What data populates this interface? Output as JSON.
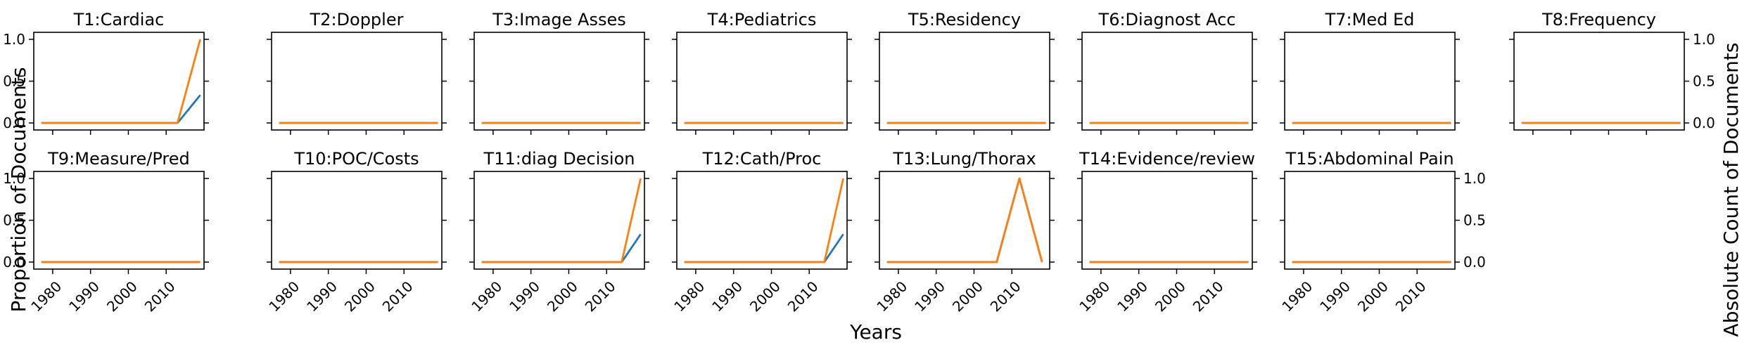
{
  "figure": {
    "xlabel": "Years",
    "ylabel_left": "Proportion of Documents",
    "ylabel_right": "Absolute Count of Documents"
  },
  "colors": {
    "proportion": "#1f77b4",
    "count": "#ff7f0e"
  },
  "chart_data": [
    {
      "type": "line",
      "title": "T1:Cardiac",
      "xlim": [
        1975,
        2020
      ],
      "ylim": [
        0,
        1
      ],
      "yticks": [
        "0.0",
        "0.5",
        "1.0"
      ],
      "series": [
        {
          "x": [
            1977,
            2013,
            2019
          ],
          "values": [
            0,
            0,
            0.333
          ]
        },
        {
          "x": [
            1977,
            2013,
            2019
          ],
          "values": [
            0,
            0,
            1
          ]
        }
      ]
    },
    {
      "type": "line",
      "title": "T2:Doppler",
      "xlim": [
        1975,
        2020
      ],
      "ylim": [
        0,
        1
      ],
      "series": [
        {
          "x": [
            1977,
            2019
          ],
          "values": [
            0,
            0
          ]
        },
        {
          "x": [
            1977,
            2019
          ],
          "values": [
            0,
            0
          ]
        }
      ]
    },
    {
      "type": "line",
      "title": "T3:Image Asses",
      "xlim": [
        1975,
        2020
      ],
      "ylim": [
        0,
        1
      ],
      "series": [
        {
          "x": [
            1977,
            2019
          ],
          "values": [
            0,
            0
          ]
        },
        {
          "x": [
            1977,
            2019
          ],
          "values": [
            0,
            0
          ]
        }
      ]
    },
    {
      "type": "line",
      "title": "T4:Pediatrics",
      "xlim": [
        1975,
        2020
      ],
      "ylim": [
        0,
        1
      ],
      "series": [
        {
          "x": [
            1977,
            2019
          ],
          "values": [
            0,
            0
          ]
        },
        {
          "x": [
            1977,
            2019
          ],
          "values": [
            0,
            0
          ]
        }
      ]
    },
    {
      "type": "line",
      "title": "T5:Residency",
      "xlim": [
        1975,
        2020
      ],
      "ylim": [
        0,
        1
      ],
      "series": [
        {
          "x": [
            1977,
            2019
          ],
          "values": [
            0,
            0
          ]
        },
        {
          "x": [
            1977,
            2019
          ],
          "values": [
            0,
            0
          ]
        }
      ]
    },
    {
      "type": "line",
      "title": "T6:Diagnost Acc",
      "xlim": [
        1975,
        2020
      ],
      "ylim": [
        0,
        1
      ],
      "series": [
        {
          "x": [
            1977,
            2019
          ],
          "values": [
            0,
            0
          ]
        },
        {
          "x": [
            1977,
            2019
          ],
          "values": [
            0,
            0
          ]
        }
      ]
    },
    {
      "type": "line",
      "title": "T7:Med Ed",
      "xlim": [
        1975,
        2020
      ],
      "ylim": [
        0,
        1
      ],
      "series": [
        {
          "x": [
            1977,
            2019
          ],
          "values": [
            0,
            0
          ]
        },
        {
          "x": [
            1977,
            2019
          ],
          "values": [
            0,
            0
          ]
        }
      ]
    },
    {
      "type": "line",
      "title": "T8:Frequency",
      "xlim": [
        1975,
        2020
      ],
      "ylim": [
        0,
        1
      ],
      "yticks_right": [
        "0.0",
        "0.5",
        "1.0"
      ],
      "series": [
        {
          "x": [
            1977,
            2019
          ],
          "values": [
            0,
            0
          ]
        },
        {
          "x": [
            1977,
            2019
          ],
          "values": [
            0,
            0
          ]
        }
      ]
    },
    {
      "type": "line",
      "title": "T9:Measure/Pred",
      "xlim": [
        1975,
        2020
      ],
      "ylim": [
        0,
        1
      ],
      "yticks": [
        "0.0",
        "0.5",
        "1.0"
      ],
      "xticks": [
        "1980",
        "1990",
        "2000",
        "2010"
      ],
      "series": [
        {
          "x": [
            1977,
            2019
          ],
          "values": [
            0,
            0
          ]
        },
        {
          "x": [
            1977,
            2019
          ],
          "values": [
            0,
            0
          ]
        }
      ]
    },
    {
      "type": "line",
      "title": "T10:POC/Costs",
      "xlim": [
        1975,
        2020
      ],
      "ylim": [
        0,
        1
      ],
      "xticks": [
        "1980",
        "1990",
        "2000",
        "2010"
      ],
      "series": [
        {
          "x": [
            1977,
            2019
          ],
          "values": [
            0,
            0
          ]
        },
        {
          "x": [
            1977,
            2019
          ],
          "values": [
            0,
            0
          ]
        }
      ]
    },
    {
      "type": "line",
      "title": "T11:diag Decision",
      "xlim": [
        1975,
        2020
      ],
      "ylim": [
        0,
        1
      ],
      "xticks": [
        "1980",
        "1990",
        "2000",
        "2010"
      ],
      "series": [
        {
          "x": [
            1977,
            2014,
            2019
          ],
          "values": [
            0,
            0,
            0.333
          ]
        },
        {
          "x": [
            1977,
            2014,
            2019
          ],
          "values": [
            0,
            0,
            1
          ]
        }
      ]
    },
    {
      "type": "line",
      "title": "T12:Cath/Proc",
      "xlim": [
        1975,
        2020
      ],
      "ylim": [
        0,
        1
      ],
      "xticks": [
        "1980",
        "1990",
        "2000",
        "2010"
      ],
      "series": [
        {
          "x": [
            1977,
            2014,
            2019
          ],
          "values": [
            0,
            0,
            0.333
          ]
        },
        {
          "x": [
            1977,
            2014,
            2019
          ],
          "values": [
            0,
            0,
            1
          ]
        }
      ]
    },
    {
      "type": "line",
      "title": "T13:Lung/Thorax",
      "xlim": [
        1975,
        2020
      ],
      "ylim": [
        0,
        1
      ],
      "xticks": [
        "1980",
        "1990",
        "2000",
        "2010"
      ],
      "series": [
        {
          "x": [
            1977,
            2006,
            2012,
            2018
          ],
          "values": [
            0,
            0,
            1,
            0
          ]
        },
        {
          "x": [
            1977,
            2006,
            2012,
            2018
          ],
          "values": [
            0,
            0,
            1,
            0
          ]
        }
      ]
    },
    {
      "type": "line",
      "title": "T14:Evidence/review",
      "xlim": [
        1975,
        2020
      ],
      "ylim": [
        0,
        1
      ],
      "xticks": [
        "1980",
        "1990",
        "2000",
        "2010"
      ],
      "series": [
        {
          "x": [
            1977,
            2019
          ],
          "values": [
            0,
            0
          ]
        },
        {
          "x": [
            1977,
            2019
          ],
          "values": [
            0,
            0
          ]
        }
      ]
    },
    {
      "type": "line",
      "title": "T15:Abdominal Pain",
      "xlim": [
        1975,
        2020
      ],
      "ylim": [
        0,
        1
      ],
      "yticks_right": [
        "0.0",
        "0.5",
        "1.0"
      ],
      "xticks": [
        "1980",
        "1990",
        "2000",
        "2010"
      ],
      "series": [
        {
          "x": [
            1977,
            2019
          ],
          "values": [
            0,
            0
          ]
        },
        {
          "x": [
            1977,
            2019
          ],
          "values": [
            0,
            0
          ]
        }
      ]
    }
  ]
}
